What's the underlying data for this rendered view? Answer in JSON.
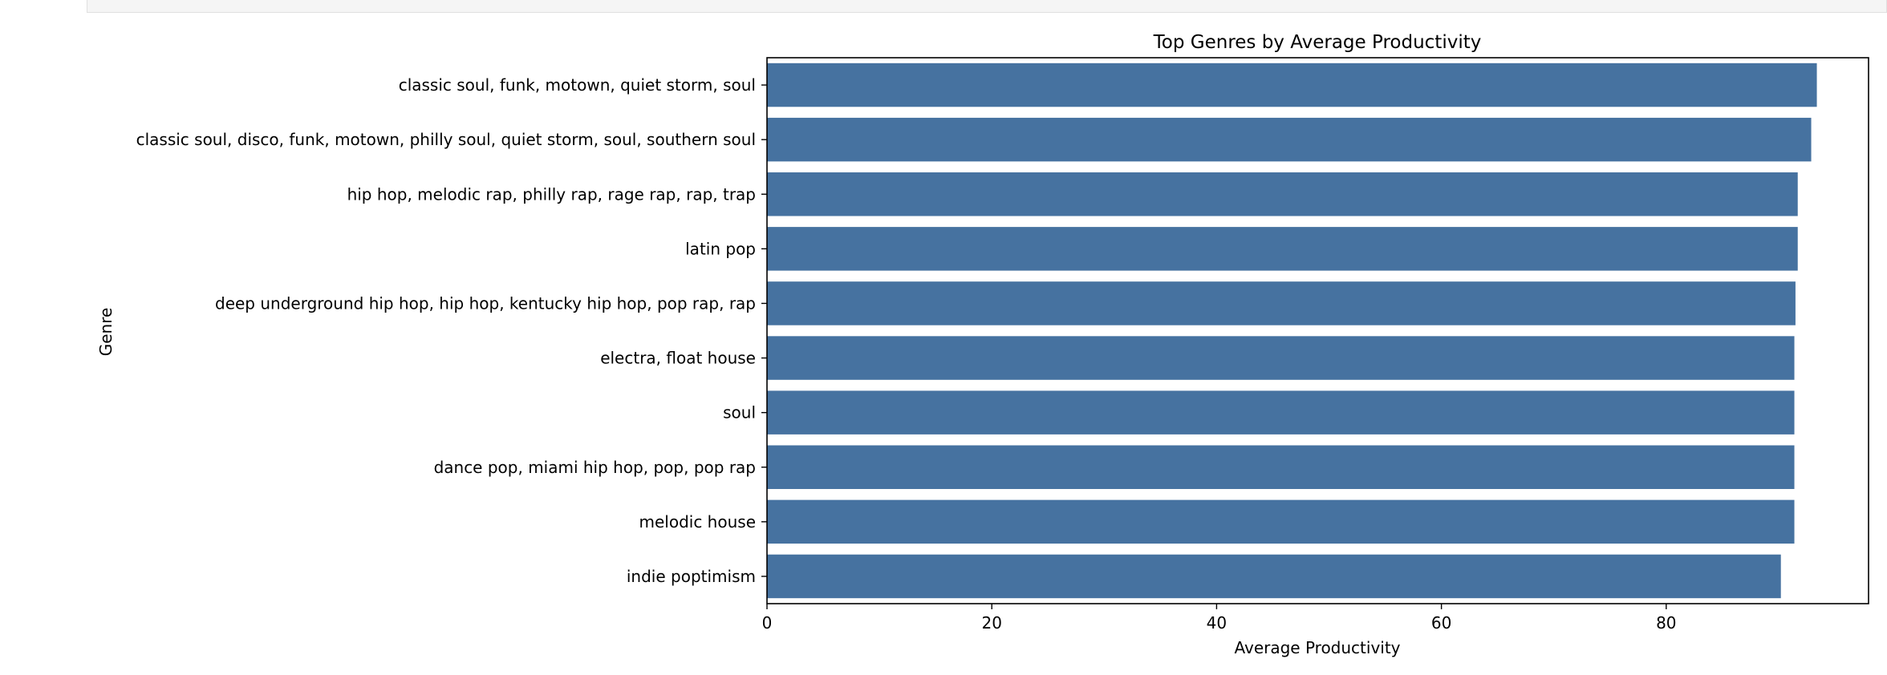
{
  "chart_data": {
    "type": "bar",
    "orientation": "horizontal",
    "title": "Top Genres by Average Productivity",
    "xlabel": "Average Productivity",
    "ylabel": "Genre",
    "xlim": [
      0,
      98
    ],
    "xticks": [
      0,
      20,
      40,
      60,
      80
    ],
    "grid": false,
    "bar_color": "#4672a0",
    "categories": [
      "classic soul, funk, motown, quiet storm, soul",
      "classic soul, disco, funk, motown, philly soul, quiet storm, soul, southern soul",
      "hip hop, melodic rap, philly rap, rage rap, rap, trap",
      "latin pop",
      "deep underground hip hop, hip hop, kentucky hip hop, pop rap, rap",
      "electra, float house",
      "soul",
      "dance pop, miami hip hop, pop, pop rap",
      "melodic house",
      "indie poptimism"
    ],
    "values": [
      93.4,
      92.9,
      91.7,
      91.7,
      91.5,
      91.4,
      91.4,
      91.4,
      91.4,
      90.2
    ]
  }
}
